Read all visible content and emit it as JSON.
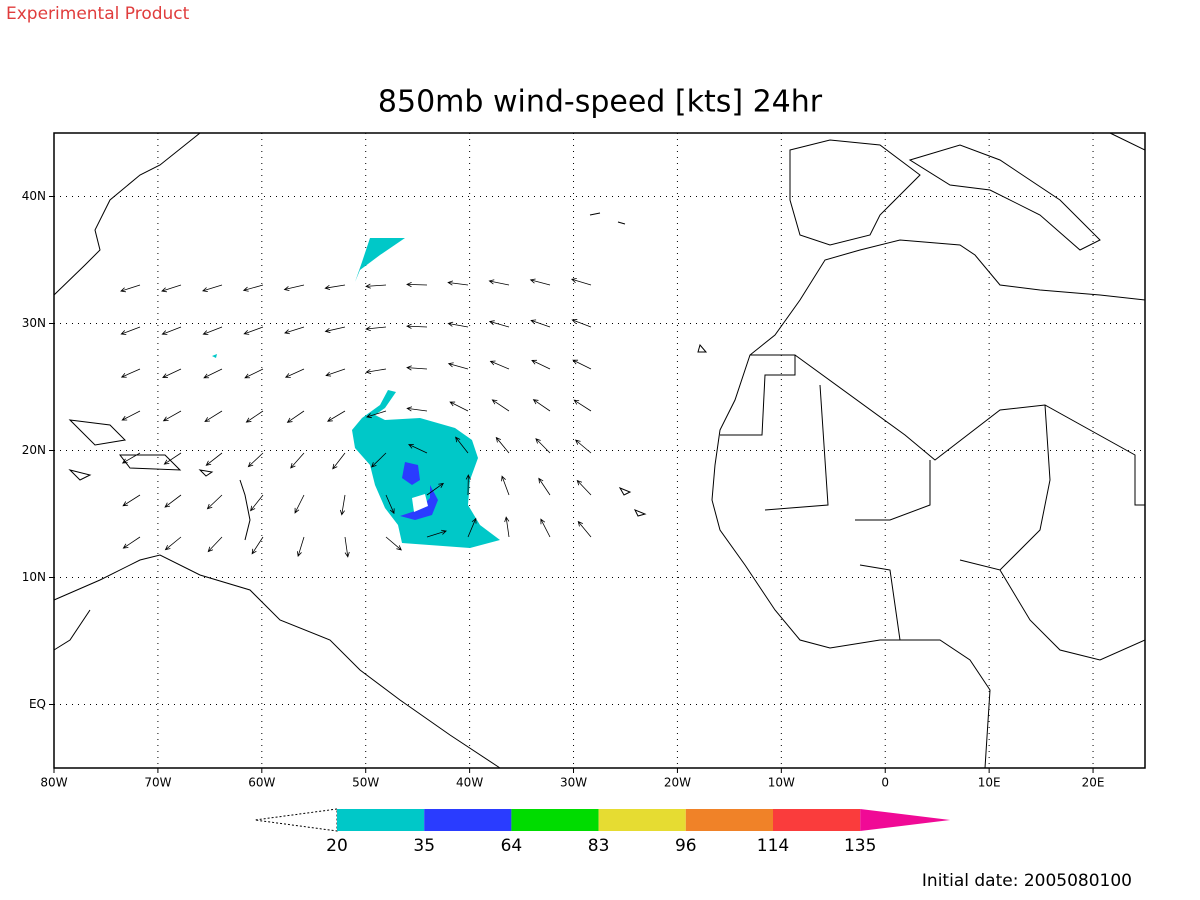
{
  "header": {
    "note": "Experimental Product"
  },
  "map": {
    "title": "850mb wind-speed [kts] 24hr",
    "xlim": [
      -80,
      25
    ],
    "ylim": [
      -5,
      45
    ],
    "xticks": [
      {
        "value": -80,
        "label": "80W"
      },
      {
        "value": -70,
        "label": "70W"
      },
      {
        "value": -60,
        "label": "60W"
      },
      {
        "value": -50,
        "label": "50W"
      },
      {
        "value": -40,
        "label": "40W"
      },
      {
        "value": -30,
        "label": "30W"
      },
      {
        "value": -20,
        "label": "20W"
      },
      {
        "value": -10,
        "label": "10W"
      },
      {
        "value": 0,
        "label": "0"
      },
      {
        "value": 10,
        "label": "10E"
      },
      {
        "value": 20,
        "label": "20E"
      }
    ],
    "yticks": [
      {
        "value": 0,
        "label": "EQ"
      },
      {
        "value": 10,
        "label": "10N"
      },
      {
        "value": 20,
        "label": "20N"
      },
      {
        "value": 30,
        "label": "30N"
      },
      {
        "value": 40,
        "label": "40N"
      }
    ],
    "grid": true
  },
  "colorbar": {
    "levels": [
      20,
      35,
      64,
      83,
      96,
      114,
      135
    ],
    "colors": [
      "#00c8c8",
      "#2a3cff",
      "#00dc00",
      "#e6dc32",
      "#f08228",
      "#fa3c3c",
      "#f00a96"
    ]
  },
  "footer": {
    "initial_date": "Initial date: 2005080100"
  }
}
